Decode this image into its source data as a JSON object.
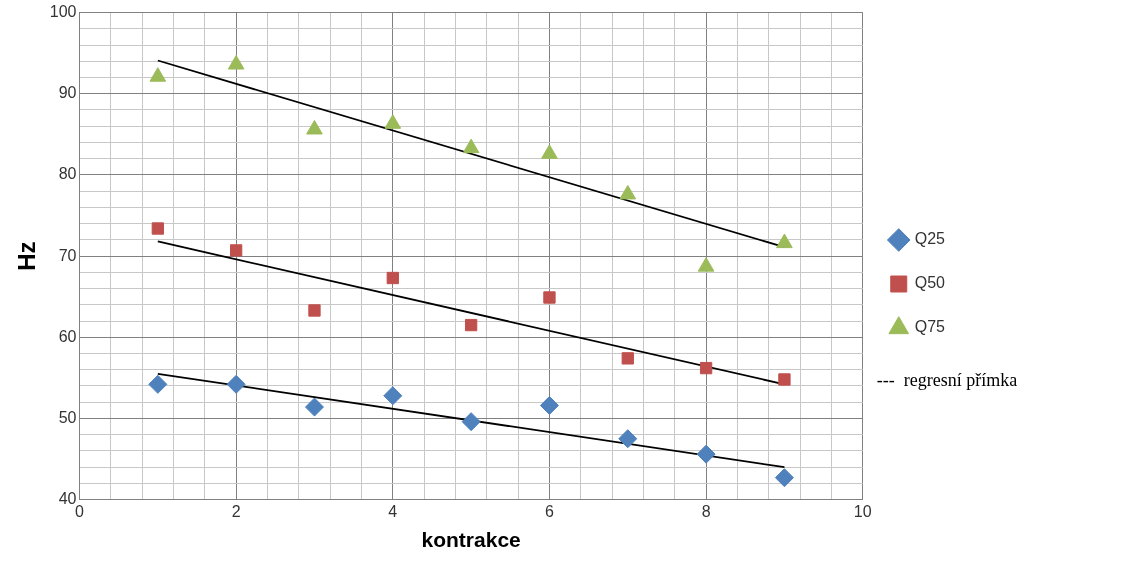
{
  "chart_data": {
    "type": "scatter",
    "xlabel": "kontrakce",
    "ylabel": "Hz",
    "xlim": [
      0,
      10
    ],
    "ylim": [
      40,
      100
    ],
    "xticks": [
      0,
      {
        "value": 0.4,
        "label": null
      },
      {
        "value": 0.8,
        "label": null
      },
      {
        "value": 1.2,
        "label": null
      },
      {
        "value": 1.6,
        "label": null
      },
      2,
      {
        "value": 2.4,
        "label": null
      },
      {
        "value": 2.8,
        "label": null
      },
      {
        "value": 3.2,
        "label": null
      },
      {
        "value": 3.6,
        "label": null
      },
      4,
      {
        "value": 4.4,
        "label": null
      },
      {
        "value": 4.8,
        "label": null
      },
      {
        "value": 5.2,
        "label": null
      },
      {
        "value": 5.6,
        "label": null
      },
      6,
      {
        "value": 6.4,
        "label": null
      },
      {
        "value": 6.8,
        "label": null
      },
      {
        "value": 7.2,
        "label": null
      },
      {
        "value": 7.6,
        "label": null
      },
      8,
      {
        "value": 8.4,
        "label": null
      },
      {
        "value": 8.8,
        "label": null
      },
      {
        "value": 9.2,
        "label": null
      },
      {
        "value": 9.6,
        "label": null
      },
      10
    ],
    "yticks": [
      40,
      {
        "value": 42,
        "label": null
      },
      {
        "value": 44,
        "label": null
      },
      {
        "value": 46,
        "label": null
      },
      {
        "value": 48,
        "label": null
      },
      50,
      {
        "value": 52,
        "label": null
      },
      {
        "value": 54,
        "label": null
      },
      {
        "value": 56,
        "label": null
      },
      {
        "value": 58,
        "label": null
      },
      60,
      {
        "value": 62,
        "label": null
      },
      {
        "value": 64,
        "label": null
      },
      {
        "value": 66,
        "label": null
      },
      {
        "value": 68,
        "label": null
      },
      70,
      {
        "value": 72,
        "label": null
      },
      {
        "value": 74,
        "label": null
      },
      {
        "value": 76,
        "label": null
      },
      {
        "value": 78,
        "label": null
      },
      80,
      {
        "value": 82,
        "label": null
      },
      {
        "value": 84,
        "label": null
      },
      {
        "value": 86,
        "label": null
      },
      {
        "value": 88,
        "label": null
      },
      90,
      {
        "value": 92,
        "label": null
      },
      {
        "value": 94,
        "label": null
      },
      {
        "value": 96,
        "label": null
      },
      {
        "value": 98,
        "label": null
      },
      100
    ],
    "grid": true,
    "legend": "right",
    "annotations": [
      "---  regresní přímka"
    ],
    "x": [
      1,
      2,
      3,
      4,
      5,
      6,
      7,
      8,
      9
    ],
    "series": [
      {
        "name": "Q25",
        "color": "#4f81bd",
        "marker": "diamond",
        "values": [
          54.2,
          54.2,
          51.4,
          52.8,
          49.6,
          51.6,
          47.5,
          45.6,
          42.7
        ]
      },
      {
        "name": "Q50",
        "color": "#c0504d",
        "marker": "square",
        "values": [
          73.4,
          70.7,
          63.3,
          67.3,
          61.5,
          64.9,
          57.4,
          56.2,
          54.8
        ]
      },
      {
        "name": "Q75",
        "color": "#9bbb59",
        "marker": "triangle",
        "values": [
          92.1,
          93.6,
          85.6,
          86.3,
          83.3,
          82.6,
          77.6,
          68.7,
          71.6
        ]
      },
      {
        "type": "line",
        "color": "#000000",
        "marker": "none",
        "values": [
          55.5,
          null,
          null,
          null,
          null,
          null,
          null,
          null,
          44.0
        ]
      },
      {
        "type": "line",
        "color": "#000000",
        "marker": "none",
        "values": [
          71.8,
          null,
          null,
          null,
          null,
          null,
          null,
          null,
          54.2
        ]
      },
      {
        "type": "line",
        "color": "#000000",
        "marker": "none",
        "values": [
          94.1,
          null,
          null,
          null,
          null,
          null,
          null,
          null,
          71.1
        ]
      }
    ]
  }
}
